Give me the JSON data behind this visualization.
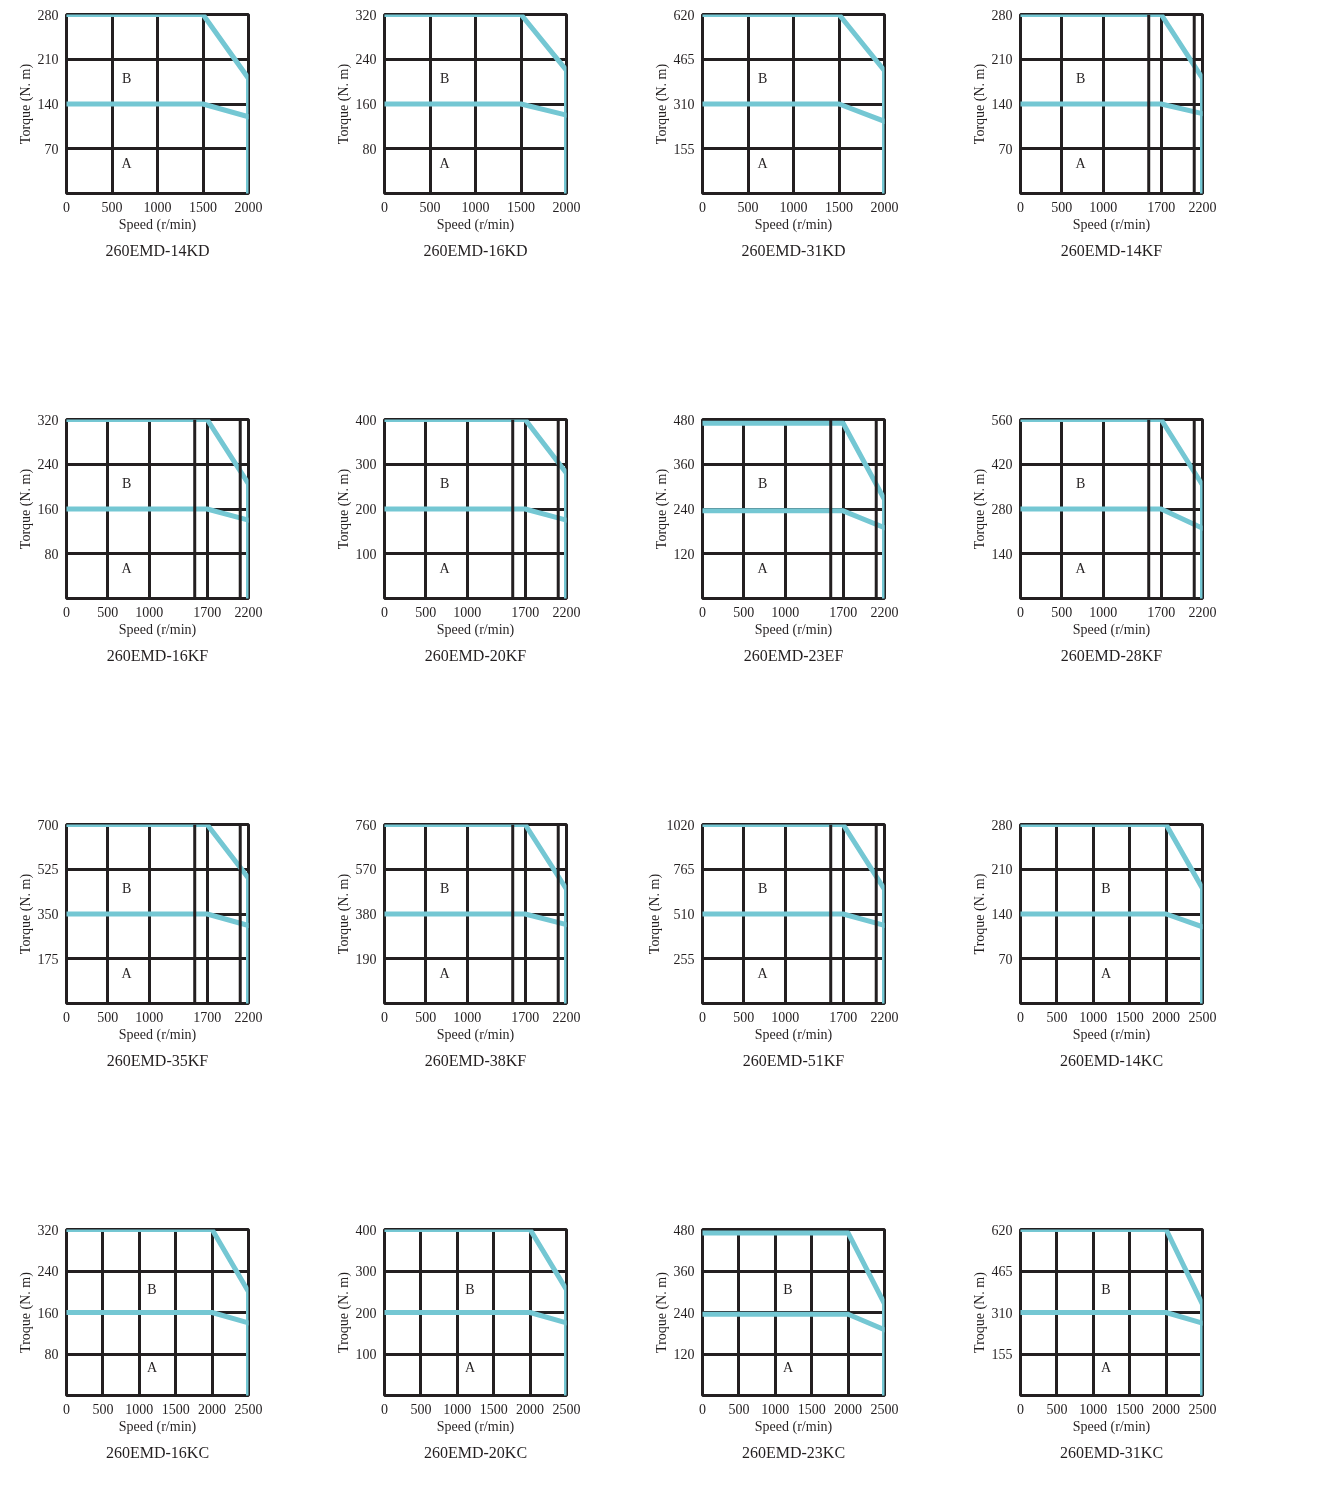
{
  "chart_data": [
    {
      "type": "line",
      "title": "260EMD-14KD",
      "xlabel": "Speed (r/min)",
      "ylabel": "Torque (N. m)",
      "xlim": [
        0,
        2000
      ],
      "ylim": [
        0,
        280
      ],
      "xticks": [
        0,
        500,
        1000,
        1500,
        2000
      ],
      "yticks": [
        70,
        140,
        210,
        280
      ],
      "grid": true,
      "series": [
        {
          "color": "#74c7d3",
          "x": [
            0,
            1500,
            2000,
            2000
          ],
          "values": [
            280,
            280,
            180,
            0
          ]
        },
        {
          "color": "#74c7d3",
          "x": [
            0,
            1500,
            2000
          ],
          "values": [
            140,
            140,
            120
          ]
        }
      ],
      "annotations": [
        "B",
        "A"
      ]
    },
    {
      "type": "line",
      "title": "260EMD-16KD",
      "xlabel": "Speed (r/min)",
      "ylabel": "Torque (N. m)",
      "xlim": [
        0,
        2000
      ],
      "ylim": [
        0,
        320
      ],
      "xticks": [
        0,
        500,
        1000,
        1500,
        2000
      ],
      "yticks": [
        80,
        160,
        240,
        320
      ],
      "grid": true,
      "series": [
        {
          "color": "#74c7d3",
          "x": [
            0,
            1500,
            2000,
            2000
          ],
          "values": [
            320,
            320,
            220,
            0
          ]
        },
        {
          "color": "#74c7d3",
          "x": [
            0,
            1500,
            2000
          ],
          "values": [
            160,
            160,
            140
          ]
        }
      ],
      "annotations": [
        "B",
        "A"
      ]
    },
    {
      "type": "line",
      "title": "260EMD-31KD",
      "xlabel": "Speed (r/min)",
      "ylabel": "Torque (N. m)",
      "xlim": [
        0,
        2000
      ],
      "ylim": [
        0,
        620
      ],
      "xticks": [
        0,
        500,
        1000,
        1500,
        2000
      ],
      "yticks": [
        155,
        310,
        465,
        620
      ],
      "grid": true,
      "series": [
        {
          "color": "#74c7d3",
          "x": [
            0,
            1500,
            2000,
            2000
          ],
          "values": [
            620,
            620,
            425,
            0
          ]
        },
        {
          "color": "#74c7d3",
          "x": [
            0,
            1500,
            2000
          ],
          "values": [
            310,
            310,
            250
          ]
        }
      ],
      "annotations": [
        "B",
        "A"
      ]
    },
    {
      "type": "line",
      "title": "260EMD-14KF",
      "xlabel": "Speed (r/min)",
      "ylabel": "Torque (N. m)",
      "xlim": [
        0,
        2200
      ],
      "ylim": [
        0,
        280
      ],
      "xticks": [
        0,
        500,
        1000,
        1700,
        2200
      ],
      "ref_lines": [
        {
          "axis": "x",
          "value": 1550,
          "color": "#231f20"
        },
        {
          "axis": "x",
          "value": 2100,
          "color": "#231f20"
        }
      ],
      "yticks": [
        70,
        140,
        210,
        280
      ],
      "grid": true,
      "series": [
        {
          "color": "#74c7d3",
          "x": [
            0,
            1700,
            2200,
            2200
          ],
          "values": [
            280,
            280,
            180,
            0
          ]
        },
        {
          "color": "#74c7d3",
          "x": [
            0,
            1700,
            2200
          ],
          "values": [
            140,
            140,
            125
          ]
        }
      ],
      "annotations": [
        "B",
        "A"
      ]
    },
    {
      "type": "line",
      "title": "260EMD-16KF",
      "xlabel": "Speed (r/min)",
      "ylabel": "Torque (N. m)",
      "xlim": [
        0,
        2200
      ],
      "ylim": [
        0,
        320
      ],
      "xticks": [
        0,
        500,
        1000,
        1700,
        2200
      ],
      "ref_lines": [
        {
          "axis": "x",
          "value": 1550,
          "color": "#231f20"
        },
        {
          "axis": "x",
          "value": 2100,
          "color": "#231f20"
        }
      ],
      "yticks": [
        80,
        160,
        240,
        320
      ],
      "grid": true,
      "series": [
        {
          "color": "#74c7d3",
          "x": [
            0,
            1700,
            2200,
            2200
          ],
          "values": [
            320,
            320,
            205,
            0
          ]
        },
        {
          "color": "#74c7d3",
          "x": [
            0,
            1700,
            2200
          ],
          "values": [
            160,
            160,
            140
          ]
        }
      ],
      "annotations": [
        "B",
        "A"
      ]
    },
    {
      "type": "line",
      "title": "260EMD-20KF",
      "xlabel": "Speed (r/min)",
      "ylabel": "Torque (N. m)",
      "xlim": [
        0,
        2200
      ],
      "ylim": [
        0,
        400
      ],
      "xticks": [
        0,
        500,
        1000,
        1700,
        2200
      ],
      "ref_lines": [
        {
          "axis": "x",
          "value": 1550,
          "color": "#231f20"
        },
        {
          "axis": "x",
          "value": 2100,
          "color": "#231f20"
        }
      ],
      "yticks": [
        100,
        200,
        300,
        400
      ],
      "grid": true,
      "series": [
        {
          "color": "#74c7d3",
          "x": [
            0,
            1700,
            2200,
            2200
          ],
          "values": [
            400,
            400,
            280,
            0
          ]
        },
        {
          "color": "#74c7d3",
          "x": [
            0,
            1700,
            2200
          ],
          "values": [
            200,
            200,
            175
          ]
        }
      ],
      "annotations": [
        "B",
        "A"
      ]
    },
    {
      "type": "line",
      "title": "260EMD-23EF",
      "xlabel": "Speed (r/min)",
      "ylabel": "Torque (N. m)",
      "xlim": [
        0,
        2200
      ],
      "ylim": [
        0,
        480
      ],
      "xticks": [
        0,
        500,
        1000,
        1700,
        2200
      ],
      "ref_lines": [
        {
          "axis": "x",
          "value": 1550,
          "color": "#231f20"
        },
        {
          "axis": "x",
          "value": 2100,
          "color": "#231f20"
        }
      ],
      "yticks": [
        120,
        240,
        360,
        480
      ],
      "grid": true,
      "series": [
        {
          "color": "#74c7d3",
          "x": [
            0,
            1700,
            2200,
            2200
          ],
          "values": [
            470,
            470,
            265,
            0
          ]
        },
        {
          "color": "#74c7d3",
          "x": [
            0,
            1700,
            2200
          ],
          "values": [
            235,
            235,
            190
          ]
        }
      ],
      "annotations": [
        "B",
        "A"
      ]
    },
    {
      "type": "line",
      "title": "260EMD-28KF",
      "xlabel": "Speed (r/min)",
      "ylabel": "Torque (N. m)",
      "xlim": [
        0,
        2200
      ],
      "ylim": [
        0,
        560
      ],
      "xticks": [
        0,
        500,
        1000,
        1700,
        2200
      ],
      "ref_lines": [
        {
          "axis": "x",
          "value": 1550,
          "color": "#231f20"
        },
        {
          "axis": "x",
          "value": 2100,
          "color": "#231f20"
        }
      ],
      "yticks": [
        140,
        280,
        420,
        560
      ],
      "grid": true,
      "series": [
        {
          "color": "#74c7d3",
          "x": [
            0,
            1700,
            2200,
            2200
          ],
          "values": [
            560,
            560,
            355,
            0
          ]
        },
        {
          "color": "#74c7d3",
          "x": [
            0,
            1700,
            2200
          ],
          "values": [
            280,
            280,
            220
          ]
        }
      ],
      "annotations": [
        "B",
        "A"
      ]
    },
    {
      "type": "line",
      "title": "260EMD-35KF",
      "xlabel": "Speed (r/min)",
      "ylabel": "Torque (N. m)",
      "xlim": [
        0,
        2200
      ],
      "ylim": [
        0,
        700
      ],
      "xticks": [
        0,
        500,
        1000,
        1700,
        2200
      ],
      "ref_lines": [
        {
          "axis": "x",
          "value": 1550,
          "color": "#231f20"
        },
        {
          "axis": "x",
          "value": 2100,
          "color": "#231f20"
        }
      ],
      "yticks": [
        175,
        350,
        525,
        700
      ],
      "grid": true,
      "series": [
        {
          "color": "#74c7d3",
          "x": [
            0,
            1700,
            2200,
            2200
          ],
          "values": [
            700,
            700,
            490,
            0
          ]
        },
        {
          "color": "#74c7d3",
          "x": [
            0,
            1700,
            2200
          ],
          "values": [
            350,
            350,
            305
          ]
        }
      ],
      "annotations": [
        "B",
        "A"
      ]
    },
    {
      "type": "line",
      "title": "260EMD-38KF",
      "xlabel": "Speed (r/min)",
      "ylabel": "Torque (N. m)",
      "xlim": [
        0,
        2200
      ],
      "ylim": [
        0,
        760
      ],
      "xticks": [
        0,
        500,
        1000,
        1700,
        2200
      ],
      "ref_lines": [
        {
          "axis": "x",
          "value": 1550,
          "color": "#231f20"
        },
        {
          "axis": "x",
          "value": 2100,
          "color": "#231f20"
        }
      ],
      "yticks": [
        190,
        380,
        570,
        760
      ],
      "grid": true,
      "series": [
        {
          "color": "#74c7d3",
          "x": [
            0,
            1700,
            2200,
            2200
          ],
          "values": [
            760,
            760,
            485,
            0
          ]
        },
        {
          "color": "#74c7d3",
          "x": [
            0,
            1700,
            2200
          ],
          "values": [
            380,
            380,
            335
          ]
        }
      ],
      "annotations": [
        "B",
        "A"
      ]
    },
    {
      "type": "line",
      "title": "260EMD-51KF",
      "xlabel": "Speed (r/min)",
      "ylabel": "Torque (N. m)",
      "xlim": [
        0,
        2200
      ],
      "ylim": [
        0,
        1020
      ],
      "xticks": [
        0,
        500,
        1000,
        1700,
        2200
      ],
      "ref_lines": [
        {
          "axis": "x",
          "value": 1550,
          "color": "#231f20"
        },
        {
          "axis": "x",
          "value": 2100,
          "color": "#231f20"
        }
      ],
      "yticks": [
        255,
        510,
        765,
        1020
      ],
      "grid": true,
      "series": [
        {
          "color": "#74c7d3",
          "x": [
            0,
            1700,
            2200,
            2200
          ],
          "values": [
            1020,
            1020,
            650,
            0
          ]
        },
        {
          "color": "#74c7d3",
          "x": [
            0,
            1700,
            2200
          ],
          "values": [
            510,
            510,
            445
          ]
        }
      ],
      "annotations": [
        "B",
        "A"
      ]
    },
    {
      "type": "line",
      "title": "260EMD-14KC",
      "xlabel": "Speed (r/min)",
      "ylabel": "Troque (N. m)",
      "xlim": [
        0,
        2500
      ],
      "ylim": [
        0,
        280
      ],
      "xticks": [
        0,
        500,
        1000,
        1500,
        2000,
        2500
      ],
      "yticks": [
        70,
        140,
        210,
        280
      ],
      "grid": true,
      "series": [
        {
          "color": "#74c7d3",
          "x": [
            0,
            2000,
            2500,
            2500
          ],
          "values": [
            280,
            280,
            180,
            0
          ]
        },
        {
          "color": "#74c7d3",
          "x": [
            0,
            2000,
            2500
          ],
          "values": [
            140,
            140,
            120
          ]
        }
      ],
      "annotations": [
        "B",
        "A"
      ]
    },
    {
      "type": "line",
      "title": "260EMD-16KC",
      "xlabel": "Speed (r/min)",
      "ylabel": "Troque (N. m)",
      "xlim": [
        0,
        2500
      ],
      "ylim": [
        0,
        320
      ],
      "xticks": [
        0,
        500,
        1000,
        1500,
        2000,
        2500
      ],
      "yticks": [
        80,
        160,
        240,
        320
      ],
      "grid": true,
      "series": [
        {
          "color": "#74c7d3",
          "x": [
            0,
            2000,
            2500,
            2500
          ],
          "values": [
            320,
            320,
            200,
            0
          ]
        },
        {
          "color": "#74c7d3",
          "x": [
            0,
            2000,
            2500
          ],
          "values": [
            160,
            160,
            140
          ]
        }
      ],
      "annotations": [
        "B",
        "A"
      ]
    },
    {
      "type": "line",
      "title": "260EMD-20KC",
      "xlabel": "Speed (r/min)",
      "ylabel": "Troque (N. m)",
      "xlim": [
        0,
        2500
      ],
      "ylim": [
        0,
        400
      ],
      "xticks": [
        0,
        500,
        1000,
        1500,
        2000,
        2500
      ],
      "yticks": [
        100,
        200,
        300,
        400
      ],
      "grid": true,
      "series": [
        {
          "color": "#74c7d3",
          "x": [
            0,
            2000,
            2500,
            2500
          ],
          "values": [
            400,
            400,
            255,
            0
          ]
        },
        {
          "color": "#74c7d3",
          "x": [
            0,
            2000,
            2500
          ],
          "values": [
            200,
            200,
            175
          ]
        }
      ],
      "annotations": [
        "B",
        "A"
      ]
    },
    {
      "type": "line",
      "title": "260EMD-23KC",
      "xlabel": "Speed (r/min)",
      "ylabel": "Troque (N. m)",
      "xlim": [
        0,
        2500
      ],
      "ylim": [
        0,
        480
      ],
      "xticks": [
        0,
        500,
        1000,
        1500,
        2000,
        2500
      ],
      "yticks": [
        120,
        240,
        360,
        480
      ],
      "grid": true,
      "series": [
        {
          "color": "#74c7d3",
          "x": [
            0,
            2000,
            2500,
            2500
          ],
          "values": [
            470,
            470,
            265,
            0
          ]
        },
        {
          "color": "#74c7d3",
          "x": [
            0,
            2000,
            2500
          ],
          "values": [
            235,
            235,
            190
          ]
        }
      ],
      "annotations": [
        "B",
        "A"
      ]
    },
    {
      "type": "line",
      "title": "260EMD-31KC",
      "xlabel": "Speed (r/min)",
      "ylabel": "Troque (N. m)",
      "xlim": [
        0,
        2500
      ],
      "ylim": [
        0,
        620
      ],
      "xticks": [
        0,
        500,
        1000,
        1500,
        2000,
        2500
      ],
      "yticks": [
        155,
        310,
        465,
        620
      ],
      "grid": true,
      "series": [
        {
          "color": "#74c7d3",
          "x": [
            0,
            2000,
            2500,
            2500
          ],
          "values": [
            620,
            620,
            340,
            0
          ]
        },
        {
          "color": "#74c7d3",
          "x": [
            0,
            2000,
            2500
          ],
          "values": [
            310,
            310,
            270
          ]
        }
      ],
      "annotations": [
        "B",
        "A"
      ]
    }
  ]
}
